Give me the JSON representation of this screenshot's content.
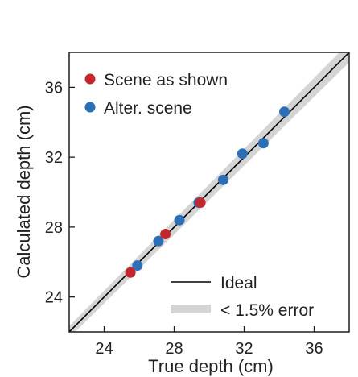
{
  "chart_data": {
    "type": "scatter",
    "xlabel": "True depth (cm)",
    "ylabel": "Calculated depth (cm)",
    "xlim": [
      22,
      38
    ],
    "ylim": [
      22,
      38
    ],
    "xticks": [
      24,
      28,
      32,
      36
    ],
    "yticks": [
      24,
      28,
      32,
      36
    ],
    "legend_position": "top-left and bottom-right",
    "series": [
      {
        "name": "Scene as shown",
        "color": "#c1272d",
        "points": [
          [
            25.5,
            25.4
          ],
          [
            27.5,
            27.6
          ],
          [
            29.5,
            29.4
          ]
        ]
      },
      {
        "name": "Alter. scene",
        "color": "#2c6fb7",
        "points": [
          [
            25.9,
            25.8
          ],
          [
            27.1,
            27.2
          ],
          [
            28.3,
            28.4
          ],
          [
            29.4,
            29.4
          ],
          [
            30.8,
            30.7
          ],
          [
            31.9,
            32.2
          ],
          [
            33.1,
            32.8
          ],
          [
            34.3,
            34.6
          ]
        ]
      }
    ],
    "reference_lines": [
      {
        "name": "Ideal",
        "color": "#000000"
      },
      {
        "name": "< 1.5% error",
        "color": "#d4d4d4",
        "error_fraction": 0.015
      }
    ],
    "grid": false
  }
}
